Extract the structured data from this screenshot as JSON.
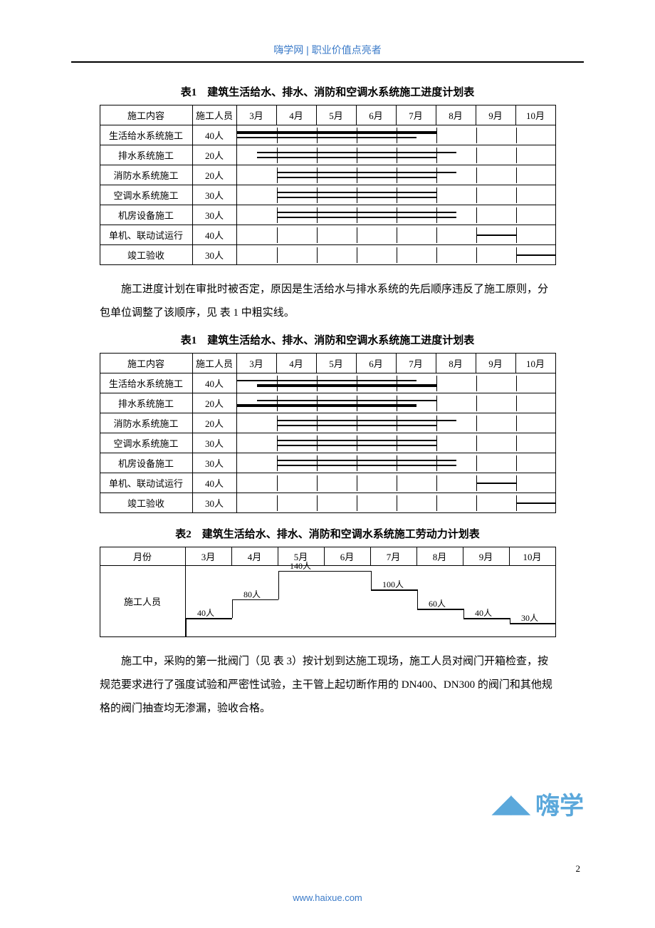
{
  "header": {
    "site": "嗨学网",
    "sep": " | ",
    "tagline": "职业价值点亮者"
  },
  "table1": {
    "title": "表1　建筑生活给水、排水、消防和空调水系统施工进度计划表",
    "cols": {
      "name": "施工内容",
      "people": "施工人员"
    },
    "months": [
      "3月",
      "4月",
      "5月",
      "6月",
      "7月",
      "8月",
      "9月",
      "10月"
    ],
    "rows": [
      {
        "name": "生活给水系统施工",
        "people": "40人",
        "bars": [
          {
            "from": 0,
            "to": 5,
            "thick": true,
            "pos": "top"
          },
          {
            "from": 0,
            "to": 4.5,
            "pos": "bot"
          }
        ]
      },
      {
        "name": "排水系统施工",
        "people": "20人",
        "bars": [
          {
            "from": 0.5,
            "to": 5.5,
            "pos": "top"
          },
          {
            "from": 0.5,
            "to": 5,
            "pos": "bot"
          }
        ]
      },
      {
        "name": "消防水系统施工",
        "people": "20人",
        "bars": [
          {
            "from": 1,
            "to": 5.5,
            "pos": "top"
          },
          {
            "from": 1,
            "to": 5,
            "pos": "bot"
          }
        ]
      },
      {
        "name": "空调水系统施工",
        "people": "30人",
        "bars": [
          {
            "from": 1,
            "to": 5,
            "pos": "top"
          },
          {
            "from": 1,
            "to": 5,
            "pos": "bot"
          }
        ]
      },
      {
        "name": "机房设备施工",
        "people": "30人",
        "bars": [
          {
            "from": 1,
            "to": 5.5,
            "pos": "top"
          },
          {
            "from": 1,
            "to": 5.5,
            "pos": "bot"
          }
        ]
      },
      {
        "name": "单机、联动试运行",
        "people": "40人",
        "bars": [
          {
            "from": 6,
            "to": 7,
            "pos": "mid"
          }
        ]
      },
      {
        "name": "竣工验收",
        "people": "30人",
        "bars": [
          {
            "from": 7,
            "to": 8,
            "pos": "mid"
          }
        ]
      }
    ]
  },
  "para1": "施工进度计划在审批时被否定，原因是生活给水与排水系统的先后顺序违反了施工原则，分包单位调整了该顺序，见 表 1 中粗实线。",
  "table1b": {
    "title": "表1　建筑生活给水、排水、消防和空调水系统施工进度计划表",
    "cols": {
      "name": "施工内容",
      "people": "施工人员"
    },
    "months": [
      "3月",
      "4月",
      "5月",
      "6月",
      "7月",
      "8月",
      "9月",
      "10月"
    ],
    "rows": [
      {
        "name": "生活给水系统施工",
        "people": "40人",
        "bars": [
          {
            "from": 0,
            "to": 4.5,
            "pos": "top"
          },
          {
            "from": 0.5,
            "to": 5,
            "thick": true,
            "pos": "bot"
          }
        ]
      },
      {
        "name": "排水系统施工",
        "people": "20人",
        "bars": [
          {
            "from": 0.5,
            "to": 5,
            "pos": "top"
          },
          {
            "from": 0,
            "to": 4.5,
            "thick": true,
            "pos": "bot"
          }
        ]
      },
      {
        "name": "消防水系统施工",
        "people": "20人",
        "bars": [
          {
            "from": 1,
            "to": 5.5,
            "pos": "top"
          },
          {
            "from": 1,
            "to": 5,
            "pos": "bot"
          }
        ]
      },
      {
        "name": "空调水系统施工",
        "people": "30人",
        "bars": [
          {
            "from": 1,
            "to": 5,
            "pos": "top"
          },
          {
            "from": 1,
            "to": 5,
            "pos": "bot"
          }
        ]
      },
      {
        "name": "机房设备施工",
        "people": "30人",
        "bars": [
          {
            "from": 1,
            "to": 5.5,
            "pos": "top"
          },
          {
            "from": 1,
            "to": 5.5,
            "pos": "bot"
          }
        ]
      },
      {
        "name": "单机、联动试运行",
        "people": "40人",
        "bars": [
          {
            "from": 6,
            "to": 7,
            "pos": "mid"
          }
        ]
      },
      {
        "name": "竣工验收",
        "people": "30人",
        "bars": [
          {
            "from": 7,
            "to": 8,
            "pos": "mid"
          }
        ]
      }
    ]
  },
  "table2": {
    "title": "表2　建筑生活给水、排水、消防和空调水系统施工劳动力计划表",
    "label_month": "月份",
    "label_people": "施工人员",
    "months": [
      "3月",
      "4月",
      "5月",
      "6月",
      "7月",
      "8月",
      "9月",
      "10月"
    ],
    "steps": [
      {
        "m": "3月",
        "v": "40人",
        "h": 40
      },
      {
        "m": "4月",
        "v": "80人",
        "h": 80
      },
      {
        "m": "5月",
        "v": "140人",
        "h": 140
      },
      {
        "m": "6月",
        "v": "140人",
        "h": 140
      },
      {
        "m": "7月",
        "v": "100人",
        "h": 100
      },
      {
        "m": "8月",
        "v": "60人",
        "h": 60
      },
      {
        "m": "9月",
        "v": "40人",
        "h": 40
      },
      {
        "m": "10月",
        "v": "30人",
        "h": 30
      }
    ],
    "max": 150
  },
  "para2": "施工中，采购的第一批阀门（见 表 3）按计划到达施工现场，施工人员对阀门开箱检查，按规范要求进行了强度试验和严密性试验，主干管上起切断作用的 DN400、DN300 的阀门和其他规格的阀门抽查均无渗漏，验收合格。",
  "footer": {
    "url": "www.haixue.com",
    "page": "2",
    "logo": "嗨学"
  }
}
